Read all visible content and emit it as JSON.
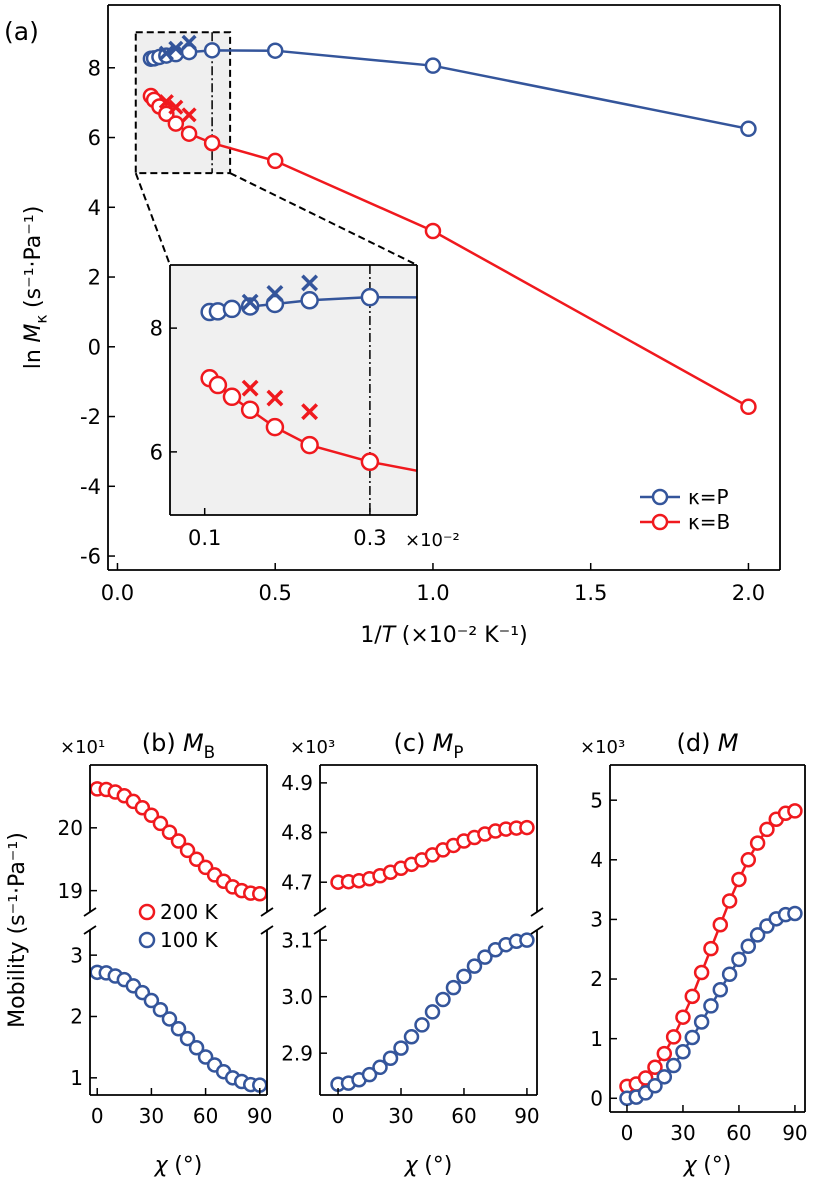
{
  "chart_data": [
    {
      "type": "line",
      "label": "(a)",
      "xlim": [
        -0.03,
        2.1
      ],
      "ylim": [
        -6.4,
        9.8
      ],
      "xticks": [
        {
          "value": 0,
          "label": "0.0"
        },
        0.5,
        {
          "value": 1,
          "label": "1.0"
        },
        1.5,
        {
          "value": 2,
          "label": "2.0"
        }
      ],
      "yticks": [
        -6,
        -4,
        -2,
        0,
        2,
        4,
        6,
        8
      ],
      "xlabel": {
        "prefix": "1/",
        "symbol": "T",
        "unit": "(×10⁻² K⁻¹)"
      },
      "ylabel": {
        "prefix": "ln",
        "symbol": "M",
        "subscript": "κ",
        "unit": "(s⁻¹·Pa⁻¹)"
      },
      "legend": "lower right",
      "series": [
        {
          "name": "κ=P",
          "color": "#34559b",
          "marker": "o",
          "line": true,
          "x": [
            0.106,
            0.116,
            0.133,
            0.155,
            0.185,
            0.227,
            0.3,
            0.5,
            1.0,
            2.0
          ],
          "values": [
            8.26,
            8.27,
            8.31,
            8.35,
            8.39,
            8.45,
            8.5,
            8.49,
            8.06,
            6.25
          ]
        },
        {
          "name": "κ=B",
          "color": "#f0191e",
          "marker": "o",
          "line": true,
          "x": [
            0.106,
            0.116,
            0.133,
            0.155,
            0.185,
            0.227,
            0.3,
            0.5,
            1.0,
            2.0
          ],
          "values": [
            7.19,
            7.08,
            6.89,
            6.68,
            6.4,
            6.11,
            5.84,
            5.33,
            3.32,
            -1.72
          ]
        },
        {
          "color": "#34559b",
          "marker": "x",
          "x": [
            0.155,
            0.185,
            0.227
          ],
          "values": [
            8.42,
            8.56,
            8.73
          ]
        },
        {
          "color": "#f0191e",
          "marker": "x",
          "x": [
            0.155,
            0.185,
            0.227
          ],
          "values": [
            7.03,
            6.87,
            6.65
          ]
        }
      ]
    },
    {
      "type": "inset",
      "xlim": [
        0.058,
        0.357
      ],
      "ylim": [
        4.98,
        9.02
      ],
      "xticks": [
        0.1,
        0.3
      ],
      "yticks": [
        6,
        8
      ],
      "x_offset_label": "×10⁻²",
      "vline": 0.3
    },
    {
      "type": "scatter",
      "title": {
        "label": "(b)",
        "symbol": "M",
        "subscript": "B"
      },
      "offset_label": "×10¹",
      "xlim": [
        -4,
        94
      ],
      "ylim": [
        18.66,
        21.0
      ],
      "yticks": [
        19,
        20
      ],
      "legend": "lower right",
      "series": [
        {
          "name": "200 K",
          "color": "#f0191e",
          "marker": "o",
          "x": [
            0,
            5,
            10,
            15,
            20,
            25,
            30,
            35,
            40,
            45,
            50,
            55,
            60,
            65,
            70,
            75,
            80,
            85,
            90
          ],
          "values": [
            20.62,
            20.61,
            20.57,
            20.51,
            20.42,
            20.32,
            20.2,
            20.07,
            19.93,
            19.79,
            19.64,
            19.5,
            19.37,
            19.25,
            19.15,
            19.06,
            19.0,
            18.96,
            18.95
          ]
        }
      ]
    },
    {
      "type": "scatter",
      "xlim": [
        -4,
        94
      ],
      "ylim": [
        0.72,
        3.41
      ],
      "xticks": [
        0,
        30,
        60,
        90
      ],
      "yticks": [
        1,
        2,
        3
      ],
      "xlabel": {
        "symbol": "χ",
        "unit": "(°)"
      },
      "ylabel": "Mobility (s⁻¹·Pa⁻¹)",
      "legend": "upper right",
      "series": [
        {
          "name": "100 K",
          "color": "#34559b",
          "marker": "o",
          "x": [
            0,
            5,
            10,
            15,
            20,
            25,
            30,
            35,
            40,
            45,
            50,
            55,
            60,
            65,
            70,
            75,
            80,
            85,
            90
          ],
          "values": [
            2.72,
            2.71,
            2.66,
            2.6,
            2.5,
            2.39,
            2.26,
            2.11,
            1.96,
            1.8,
            1.64,
            1.49,
            1.34,
            1.21,
            1.1,
            1.0,
            0.94,
            0.89,
            0.88
          ]
        }
      ]
    },
    {
      "type": "scatter",
      "title": {
        "label": "(c)",
        "symbol": "M",
        "subscript": "P"
      },
      "offset_label": "×10³",
      "xlim": [
        -8.6,
        94.8
      ],
      "ylim": [
        4.64,
        4.936
      ],
      "yticks": [
        4.7,
        4.8,
        4.9
      ],
      "series": [
        {
          "color": "#f0191e",
          "marker": "o",
          "x": [
            0,
            5,
            10,
            15,
            20,
            25,
            30,
            35,
            40,
            45,
            50,
            55,
            60,
            65,
            70,
            75,
            80,
            85,
            90
          ],
          "values": [
            4.7,
            4.701,
            4.703,
            4.707,
            4.713,
            4.72,
            4.728,
            4.736,
            4.745,
            4.755,
            4.765,
            4.774,
            4.783,
            4.79,
            4.797,
            4.803,
            4.807,
            4.809,
            4.81
          ]
        }
      ]
    },
    {
      "type": "scatter",
      "xlim": [
        -8.6,
        94.8
      ],
      "ylim": [
        2.826,
        3.118
      ],
      "xticks": [
        0,
        30,
        60,
        90
      ],
      "yticks": [
        2.9,
        {
          "value": 3,
          "label": "3.0"
        },
        3.1
      ],
      "xlabel": {
        "symbol": "χ",
        "unit": "(°)"
      },
      "series": [
        {
          "color": "#34559b",
          "marker": "o",
          "x": [
            0,
            5,
            10,
            15,
            20,
            25,
            30,
            35,
            40,
            45,
            50,
            55,
            60,
            65,
            70,
            75,
            80,
            85,
            90
          ],
          "values": [
            2.845,
            2.847,
            2.853,
            2.862,
            2.875,
            2.891,
            2.909,
            2.929,
            2.95,
            2.973,
            2.995,
            3.016,
            3.036,
            3.054,
            3.07,
            3.083,
            3.092,
            3.098,
            3.1
          ]
        }
      ]
    },
    {
      "type": "line",
      "title": {
        "label": "(d)",
        "symbol": "M"
      },
      "offset_label": "×10³",
      "xlim": [
        -9.1,
        95.4
      ],
      "ylim": [
        -0.23,
        5.59
      ],
      "xticks": [
        0,
        30,
        60,
        90
      ],
      "yticks": [
        0,
        1,
        2,
        3,
        4,
        5
      ],
      "xlabel": {
        "symbol": "χ",
        "unit": "(°)"
      },
      "series": [
        {
          "color": "#f0191e",
          "marker": "o",
          "line": true,
          "x": [
            0,
            5,
            10,
            15,
            20,
            25,
            30,
            35,
            40,
            45,
            50,
            55,
            60,
            65,
            70,
            75,
            80,
            85,
            90
          ],
          "values": [
            0.2,
            0.24,
            0.34,
            0.52,
            0.75,
            1.03,
            1.36,
            1.71,
            2.11,
            2.51,
            2.91,
            3.31,
            3.67,
            4.0,
            4.28,
            4.51,
            4.68,
            4.78,
            4.82
          ]
        },
        {
          "color": "#34559b",
          "marker": "o",
          "line": true,
          "x": [
            0,
            5,
            10,
            15,
            20,
            25,
            30,
            35,
            40,
            45,
            50,
            55,
            60,
            65,
            70,
            75,
            80,
            85,
            90
          ],
          "values": [
            0.0,
            0.02,
            0.09,
            0.21,
            0.36,
            0.55,
            0.78,
            1.02,
            1.28,
            1.55,
            1.82,
            2.08,
            2.33,
            2.55,
            2.74,
            2.89,
            3.01,
            3.08,
            3.1
          ]
        }
      ]
    }
  ]
}
